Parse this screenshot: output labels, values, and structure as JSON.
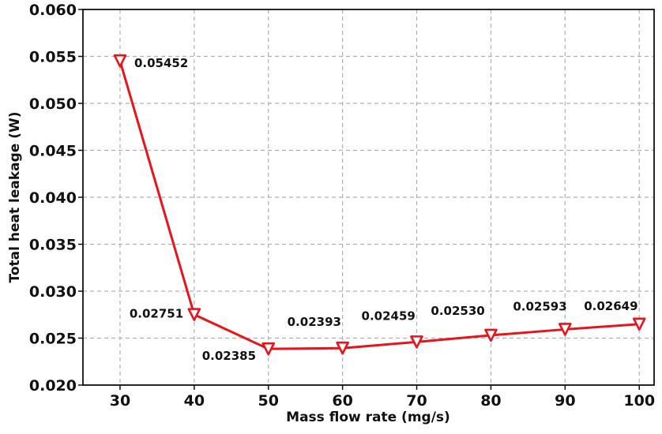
{
  "chart_data": {
    "type": "line",
    "xlabel": "Mass flow rate (mg/s)",
    "ylabel": "Total heat leakage (W)",
    "xlim": [
      25,
      102
    ],
    "ylim": [
      0.02,
      0.06
    ],
    "x_ticks": [
      "30",
      "40",
      "50",
      "60",
      "70",
      "80",
      "90",
      "100"
    ],
    "y_ticks": [
      "0.020",
      "0.025",
      "0.030",
      "0.035",
      "0.040",
      "0.045",
      "0.050",
      "0.055",
      "0.060"
    ],
    "grid": true,
    "series": [
      {
        "color": "#e8141b",
        "marker": "triangle-down",
        "x": [
          30,
          40,
          50,
          60,
          70,
          80,
          90,
          100
        ],
        "values": [
          0.05452,
          0.02751,
          0.02385,
          0.02393,
          0.02459,
          0.0253,
          0.02593,
          0.02649
        ],
        "labels": [
          "0.05452",
          "0.02751",
          "0.02385",
          "0.02393",
          "0.02459",
          "0.02530",
          "0.02593",
          "0.02649"
        ]
      }
    ]
  }
}
